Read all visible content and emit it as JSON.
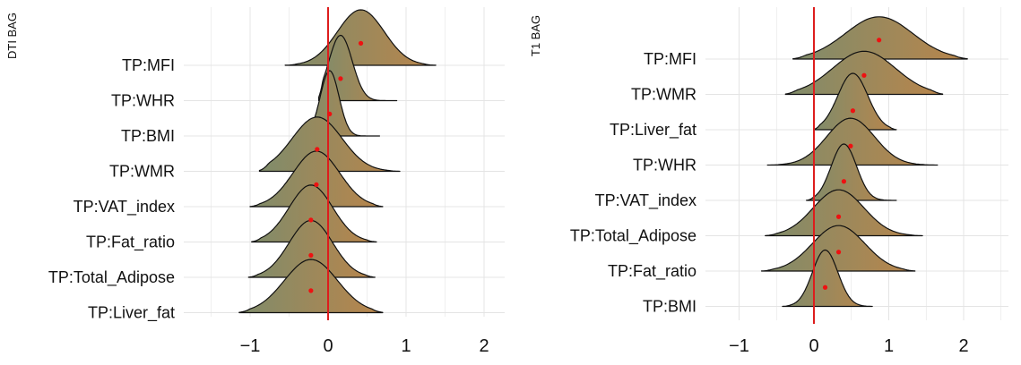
{
  "chart_data": [
    {
      "type": "ridgeline",
      "ylabel": "DTI BAG",
      "xlabel": "",
      "xlim": [
        -1.3,
        2.3
      ],
      "xticks": [
        -1,
        0,
        1,
        2
      ],
      "xtick_labels": [
        "−1",
        "0",
        "1",
        "2"
      ],
      "grid": true,
      "reference_line_x": 0,
      "categories": [
        "TP:MFI",
        "TP:WHR",
        "TP:BMI",
        "TP:WMR",
        "TP:VAT_index",
        "TP:Fat_ratio",
        "TP:Total_Adipose",
        "TP:Liver_fat"
      ],
      "means": [
        0.42,
        0.16,
        0.02,
        -0.14,
        -0.15,
        -0.22,
        -0.22,
        -0.22
      ],
      "sds": [
        0.3,
        0.15,
        0.12,
        0.32,
        0.3,
        0.28,
        0.28,
        0.34
      ],
      "ranges": [
        [
          -0.55,
          1.38
        ],
        [
          -0.12,
          0.88
        ],
        [
          -0.32,
          0.66
        ],
        [
          -0.88,
          0.92
        ],
        [
          -1.0,
          0.7
        ],
        [
          -0.98,
          0.62
        ],
        [
          -1.02,
          0.6
        ],
        [
          -1.14,
          0.7
        ]
      ]
    },
    {
      "type": "ridgeline",
      "ylabel": "T1 BAG",
      "xlabel": "",
      "xlim": [
        -1.3,
        2.8
      ],
      "xticks": [
        -1,
        0,
        1,
        2
      ],
      "xtick_labels": [
        "−1",
        "0",
        "1",
        "2"
      ],
      "grid": true,
      "reference_line_x": 0,
      "categories": [
        "TP:MFI",
        "TP:WMR",
        "TP:Liver_fat",
        "TP:WHR",
        "TP:VAT_index",
        "TP:Total_Adipose",
        "TP:Fat_ratio",
        "TP:BMI"
      ],
      "means": [
        0.87,
        0.67,
        0.52,
        0.49,
        0.4,
        0.33,
        0.33,
        0.15
      ],
      "sds": [
        0.45,
        0.42,
        0.2,
        0.32,
        0.17,
        0.34,
        0.35,
        0.17
      ],
      "ranges": [
        [
          -0.28,
          2.05
        ],
        [
          -0.38,
          1.72
        ],
        [
          0.0,
          1.1
        ],
        [
          -0.62,
          1.65
        ],
        [
          -0.1,
          1.1
        ],
        [
          -0.65,
          1.45
        ],
        [
          -0.7,
          1.35
        ],
        [
          -0.42,
          0.78
        ]
      ]
    }
  ],
  "colors": {
    "fill_left": "#7f8c6b",
    "fill_right": "#b9854b",
    "reference_line": "#dd1d1d",
    "mean_dot": "#ee1111",
    "grid": "#e4e4e4"
  }
}
